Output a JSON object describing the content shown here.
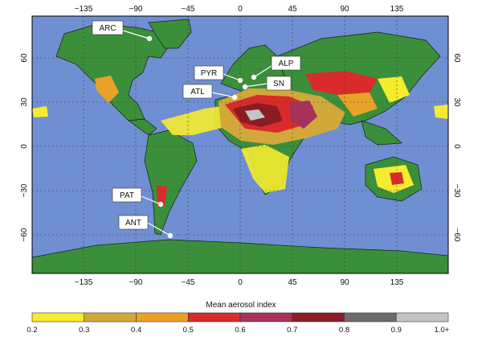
{
  "map": {
    "ocean_color": "#6f8fd2",
    "land_color": "#3b8f3a",
    "lon_ticks": [
      "−135",
      "−90",
      "−45",
      "0",
      "45",
      "90",
      "135"
    ],
    "lat_ticks": [
      "60",
      "30",
      "0",
      "−30",
      "−60"
    ]
  },
  "sites": [
    {
      "code": "ARC"
    },
    {
      "code": "ALP"
    },
    {
      "code": "PYR"
    },
    {
      "code": "SN"
    },
    {
      "code": "ATL"
    },
    {
      "code": "PAT"
    },
    {
      "code": "ANT"
    }
  ],
  "legend": {
    "title": "Mean aerosol index",
    "ticks": [
      "0.2",
      "0.3",
      "0.4",
      "0.5",
      "0.6",
      "0.7",
      "0.8",
      "0.9",
      "1.0+"
    ],
    "colors": [
      "#f5ec2f",
      "#d1a83a",
      "#e8a227",
      "#d92b2b",
      "#a8315b",
      "#8c1c24",
      "#6c6c6c",
      "#c4c4c4"
    ]
  }
}
